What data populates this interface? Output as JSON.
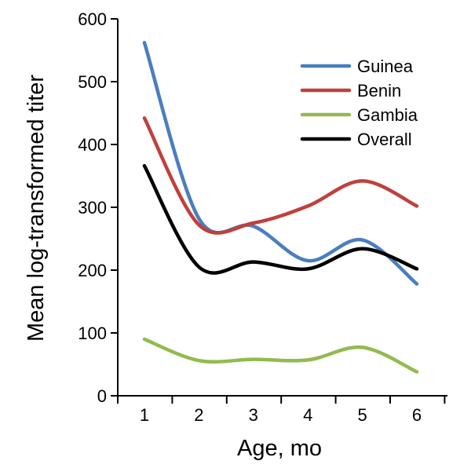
{
  "chart_data": {
    "type": "line",
    "title": "",
    "xlabel": "Age, mo",
    "ylabel": "Mean log-transformed titer",
    "x": [
      1,
      2,
      3,
      4,
      5,
      6
    ],
    "categories": [
      "1",
      "2",
      "3",
      "4",
      "5",
      "6"
    ],
    "ylim": [
      0,
      600
    ],
    "yticks": [
      "0",
      "100",
      "200",
      "300",
      "400",
      "500",
      "600"
    ],
    "grid": false,
    "legend": "top-right",
    "series": [
      {
        "name": "Guinea",
        "color": "#4a7ebf",
        "values": [
          562,
          282,
          270,
          215,
          248,
          178
        ]
      },
      {
        "name": "Benin",
        "color": "#c0403d",
        "values": [
          442,
          272,
          275,
          302,
          342,
          302
        ]
      },
      {
        "name": "Gambia",
        "color": "#92bb50",
        "values": [
          90,
          56,
          58,
          57,
          77,
          38
        ]
      },
      {
        "name": "Overall",
        "color": "#000000",
        "values": [
          366,
          205,
          213,
          202,
          234,
          202
        ]
      }
    ]
  }
}
